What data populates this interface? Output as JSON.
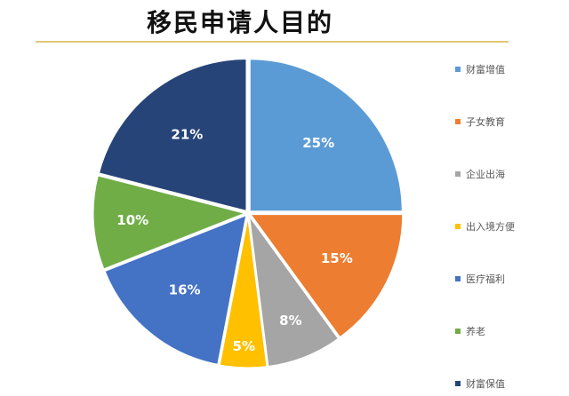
{
  "chart_data": {
    "type": "pie",
    "title": "移民申请人目的",
    "categories": [
      "财富增值",
      "子女教育",
      "企业出海",
      "出入境方便",
      "医疗福利",
      "养老",
      "财富保值"
    ],
    "values": [
      25,
      15,
      8,
      5,
      16,
      10,
      21
    ],
    "value_labels": [
      "25%",
      "15%",
      "8%",
      "5%",
      "16%",
      "10%",
      "21%"
    ],
    "colors": [
      "#5b9bd5",
      "#ed7d31",
      "#a5a5a5",
      "#ffc000",
      "#4472c4",
      "#70ad47",
      "#264478"
    ],
    "legend_position": "right",
    "start_angle": "12 o'clock",
    "direction": "clockwise"
  }
}
